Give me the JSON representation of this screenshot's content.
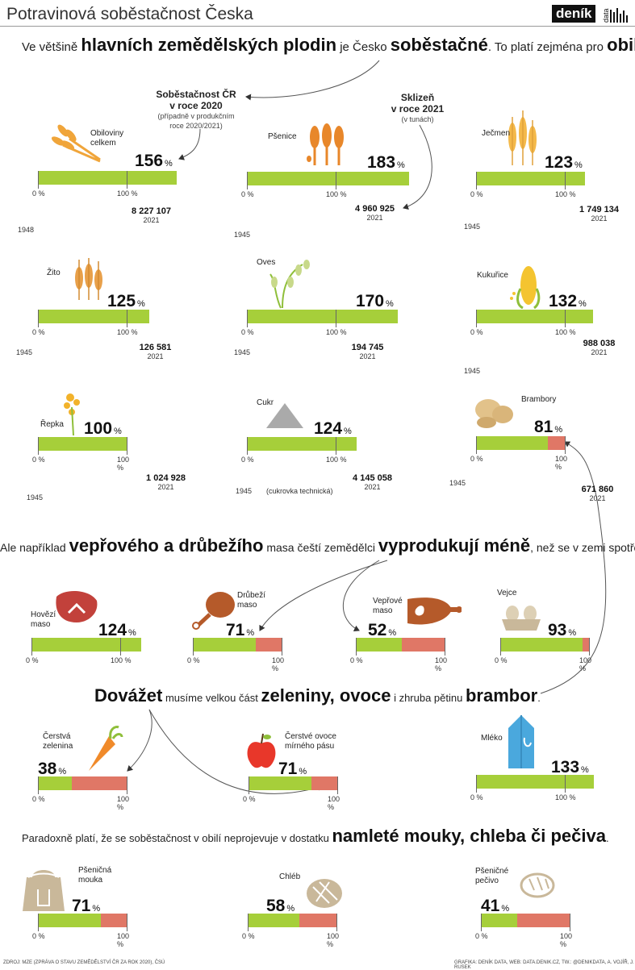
{
  "header": {
    "title": "Potravinová soběstačnost Česka",
    "logo_text": "deník",
    "logo_sub": "data"
  },
  "intro": {
    "p1": "Ve většině ",
    "b1": "hlavních zemědělských plodin",
    "p2": " je Česko ",
    "b2": "soběstačné",
    "p3": ". To platí zejména pro ",
    "b3": "obilí",
    "p4": "."
  },
  "legend_self": {
    "title1": "Soběstačnost ČR",
    "title2": "v roce 2020",
    "sub1": "(případně v produkčním",
    "sub2": "roce 2020/2021)"
  },
  "legend_harvest": {
    "title1": "Sklizeň",
    "title2": "v roce 2021",
    "sub": "(v tunách)"
  },
  "ticks": {
    "zero": "0 %",
    "hundred": "100 %",
    "unit": "%"
  },
  "crops": [
    {
      "label1": "Obiloviny",
      "label2": "celkem",
      "pct": "156",
      "value": 156,
      "harvest": "8 227 107",
      "hyear": "2021",
      "year": "1948"
    },
    {
      "label1": "Pšenice",
      "label2": "",
      "pct": "183",
      "value": 183,
      "harvest": "4 960 925",
      "hyear": "2021",
      "year": "1945"
    },
    {
      "label1": "Ječmen",
      "label2": "",
      "pct": "123",
      "value": 123,
      "harvest": "1 749 134",
      "hyear": "2021",
      "year": "1945"
    },
    {
      "label1": "Žito",
      "label2": "",
      "pct": "125",
      "value": 125,
      "harvest": "126 581",
      "hyear": "2021",
      "year": "1945"
    },
    {
      "label1": "Oves",
      "label2": "",
      "pct": "170",
      "value": 170,
      "harvest": "194 745",
      "hyear": "2021",
      "year": "1945"
    },
    {
      "label1": "Kukuřice",
      "label2": "",
      "pct": "132",
      "value": 132,
      "harvest": "988 038",
      "hyear": "2021",
      "year": "1945"
    },
    {
      "label1": "Řepka",
      "label2": "",
      "pct": "100",
      "value": 100,
      "harvest": "1 024 928",
      "hyear": "2021",
      "year": "1945"
    },
    {
      "label1": "Cukr",
      "label2": "",
      "pct": "124",
      "value": 124,
      "harvest": "4 145 058",
      "hyear": "2021",
      "year": "1945",
      "note": "(cukrovka technická)"
    },
    {
      "label1": "Brambory",
      "label2": "",
      "pct": "81",
      "value": 81,
      "harvest": "671 860",
      "hyear": "2021",
      "year": "1945"
    }
  ],
  "meat_sentence": {
    "p1": "Ale například ",
    "b1": "vepřového a drůbežího",
    "p2": " masa čeští zemědělci ",
    "b2": "vyprodukují méně",
    "p3": ", než se v zemi spotřebuje."
  },
  "meat": [
    {
      "label1": "Hovězí",
      "label2": "maso",
      "pct": "124",
      "value": 124
    },
    {
      "label1": "Drůbeží",
      "label2": "maso",
      "pct": "71",
      "value": 71
    },
    {
      "label1": "Vepřové",
      "label2": "maso",
      "pct": "52",
      "value": 52
    },
    {
      "label1": "Vejce",
      "label2": "",
      "pct": "93",
      "value": 93
    }
  ],
  "import_sentence": {
    "b1": "Dovážet",
    "p1": " musíme velkou část ",
    "b2": "zeleniny, ovoce",
    "p2": " i zhruba pětinu ",
    "b3": "brambor",
    "p3": "."
  },
  "produce": [
    {
      "label1": "Čerstvá",
      "label2": "zelenina",
      "pct": "38",
      "value": 38
    },
    {
      "label1": "Čerstvé ovoce",
      "label2": "mírného pásu",
      "pct": "71",
      "value": 71
    },
    {
      "label1": "Mléko",
      "label2": "",
      "pct": "133",
      "value": 133
    }
  ],
  "flour_sentence": {
    "p1": "Paradoxně platí, že se soběstačnost v obilí neprojevuje v dostatku ",
    "b1": "namleté mouky, chleba či pečiva",
    "p2": "."
  },
  "bakery": [
    {
      "label1": "Pšeničná",
      "label2": "mouka",
      "pct": "71",
      "value": 71
    },
    {
      "label1": "Chléb",
      "label2": "",
      "pct": "58",
      "value": 58
    },
    {
      "label1": "Pšeničné",
      "label2": "pečivo",
      "pct": "41",
      "value": 41
    }
  ],
  "footer": {
    "source": "ZDROJ: MZE (ZPRÁVA O STAVU ZEMĚDĚLSTVÍ ČR ZA ROK 2020), ČSÚ",
    "credit": "GRAFIKA: DENÍK DATA, WEB: DATA.DENIK.CZ, TW.: @DENIKDATA, A. VOJÍŘ, J. RUSEK"
  },
  "colors": {
    "green": "#a6cf3a",
    "red": "#e07766",
    "grain": "#f0a53a",
    "meat": "#c2413b",
    "leg": "#b55a2a",
    "beige": "#c9b89a",
    "blue": "#4aa8dd"
  }
}
